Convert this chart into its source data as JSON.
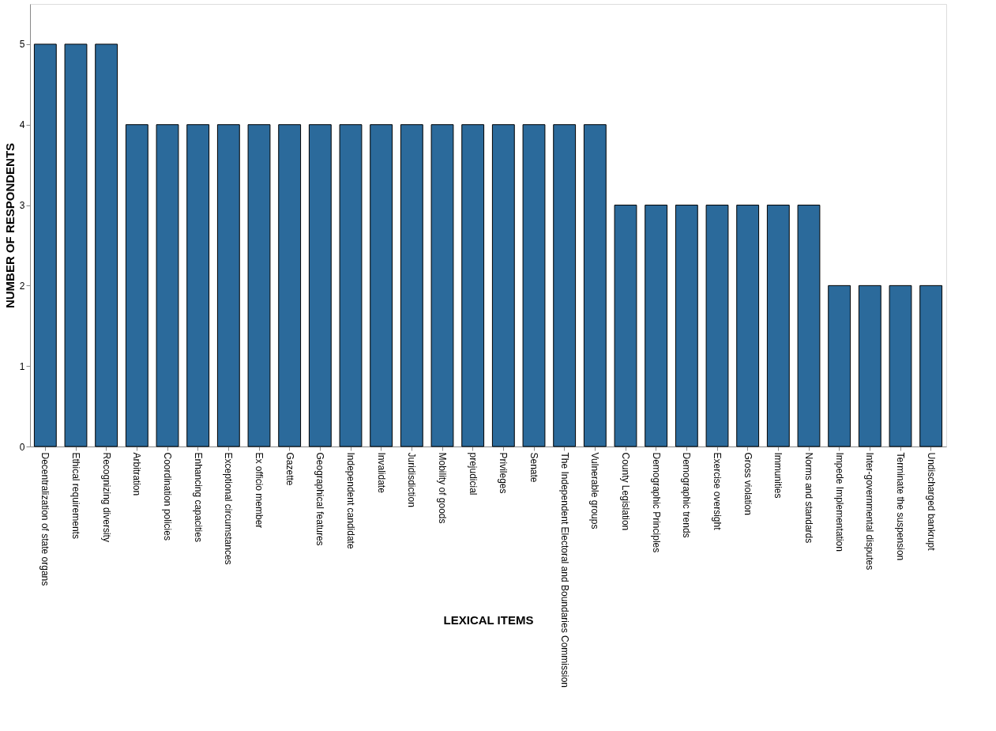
{
  "chart_data": {
    "type": "bar",
    "xlabel": "LEXICAL ITEMS",
    "ylabel": "NUMBER OF RESPONDENTS",
    "categories": [
      "Decentralization of state organs",
      "Ethical requirements",
      "Recognizing diversity",
      "Arbitration",
      "Coordination policies",
      "Enhancing capacities",
      "Exceptional circumstances",
      "Ex officio member",
      "Gazette",
      "Geographical features",
      "Independent candidate",
      "Invalidate",
      "Juridisdiction",
      "Mobility of goods",
      "prejudicial",
      "Privileges",
      "Senate",
      "The Independent Electoral and Boundaries Commission",
      "Vulnerable groups",
      "County Legislation",
      "Demographic Principles",
      "Demographic trends",
      "Exercise oversight",
      "Gross violation",
      "Immunities",
      "Norms and standards",
      "Impede Implementation",
      "Inter-governmental disputes",
      "Terminate the suspension",
      "Undischarged bankrupt"
    ],
    "values": [
      5,
      5,
      5,
      4,
      4,
      4,
      4,
      4,
      4,
      4,
      4,
      4,
      4,
      4,
      4,
      4,
      4,
      4,
      4,
      3,
      3,
      3,
      3,
      3,
      3,
      3,
      2,
      2,
      2,
      2
    ],
    "color": "#2b6a9b",
    "ylim": [
      0,
      5.5
    ],
    "yticks": [
      0,
      1,
      2,
      3,
      4,
      5
    ],
    "grid": false
  }
}
